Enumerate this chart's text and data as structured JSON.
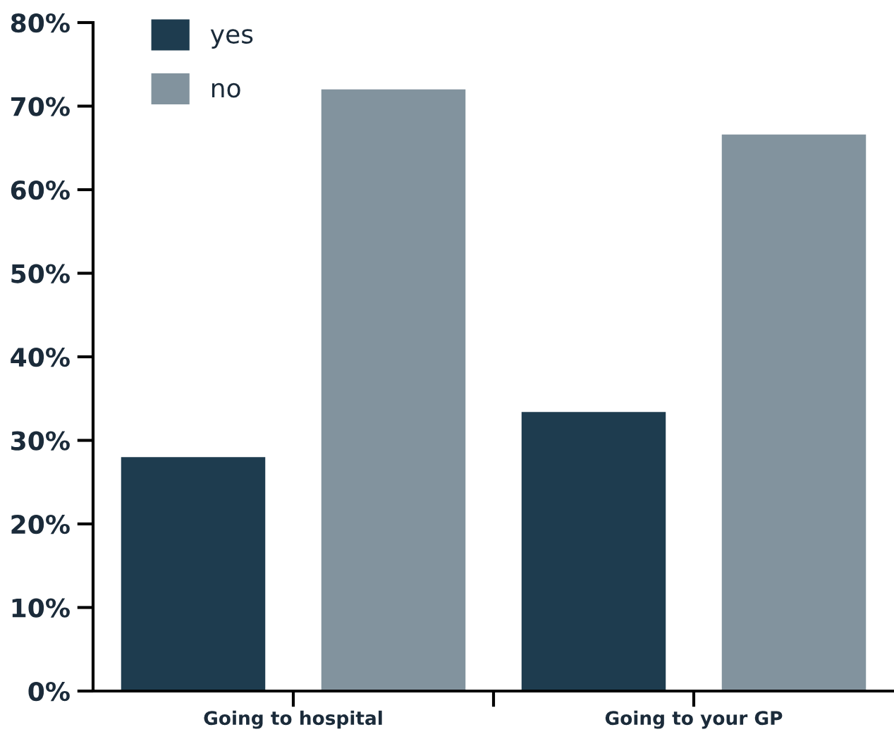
{
  "chart_data": {
    "type": "bar",
    "categories": [
      "Going to hospital",
      "Going to your GP"
    ],
    "series": [
      {
        "name": "yes",
        "color": "#1e3c4f",
        "values": [
          28,
          33.4
        ]
      },
      {
        "name": "no",
        "color": "#82939e",
        "values": [
          72,
          66.6
        ]
      }
    ],
    "ylim": [
      0,
      80
    ],
    "yticks": [
      {
        "value": 0,
        "label": "0%"
      },
      {
        "value": 10,
        "label": "10%"
      },
      {
        "value": 20,
        "label": "20%"
      },
      {
        "value": 30,
        "label": "30%"
      },
      {
        "value": 40,
        "label": "40%"
      },
      {
        "value": 50,
        "label": "50%"
      },
      {
        "value": 60,
        "label": "60%"
      },
      {
        "value": 70,
        "label": "70%"
      },
      {
        "value": 80,
        "label": "80%"
      }
    ],
    "grid": false,
    "legend": "top left"
  }
}
